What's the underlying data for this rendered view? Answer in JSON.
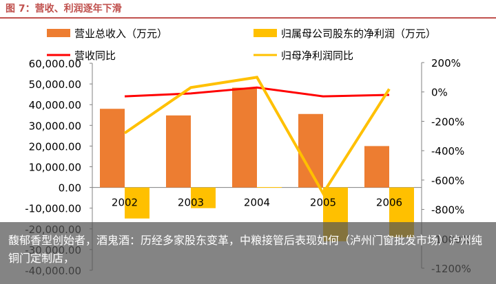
{
  "figure_title": "图 7：营收、利润逐年下滑",
  "caption": "馥郁香型创始者，酒鬼酒：历经多家股东变革，中粮接管后表现如何（泸州门窗批发市场）泸州纯铜门定制店，",
  "colors": {
    "revenue": "#ed7d31",
    "profit": "#ffc000",
    "revenue_yoy": "#ff0000",
    "profit_yoy": "#ffc000",
    "title": "#c0504d"
  },
  "chart_data": {
    "type": "bar",
    "categories": [
      "2002",
      "2003",
      "2004",
      "2005",
      "2006"
    ],
    "series": [
      {
        "name": "营业总收入（万元）",
        "kind": "bar",
        "axis": "left",
        "values": [
          38000,
          34800,
          48200,
          35500,
          20000
        ]
      },
      {
        "name": "归属母公司股东的净利润（万元）",
        "kind": "bar",
        "axis": "left",
        "values": [
          -15000,
          -10000,
          200,
          -26000,
          -24000
        ]
      },
      {
        "name": "营收同比",
        "kind": "line",
        "axis": "right",
        "values": [
          -30,
          -10,
          30,
          -30,
          -20
        ]
      },
      {
        "name": "归母净利润同比",
        "kind": "line",
        "axis": "right",
        "values": [
          -280,
          30,
          100,
          -690,
          20
        ]
      }
    ],
    "y_left": {
      "min": -40000,
      "max": 60000,
      "step": 10000,
      "tick_labels": [
        "60,000.00",
        "50,000.00",
        "40,000.00",
        "30,000.00",
        "20,000.00",
        "10,000.00",
        "0.00",
        "-10,000.00",
        "-20,000.00",
        "-30,000.00",
        "-40,000.00"
      ]
    },
    "y_right": {
      "min": -1200,
      "max": 200,
      "step": 200,
      "tick_labels": [
        "200%",
        "0%",
        "-200%",
        "-400%",
        "-600%",
        "-800%",
        "-1000%",
        "-1200%"
      ]
    },
    "legend_position": "top",
    "grid": false
  }
}
